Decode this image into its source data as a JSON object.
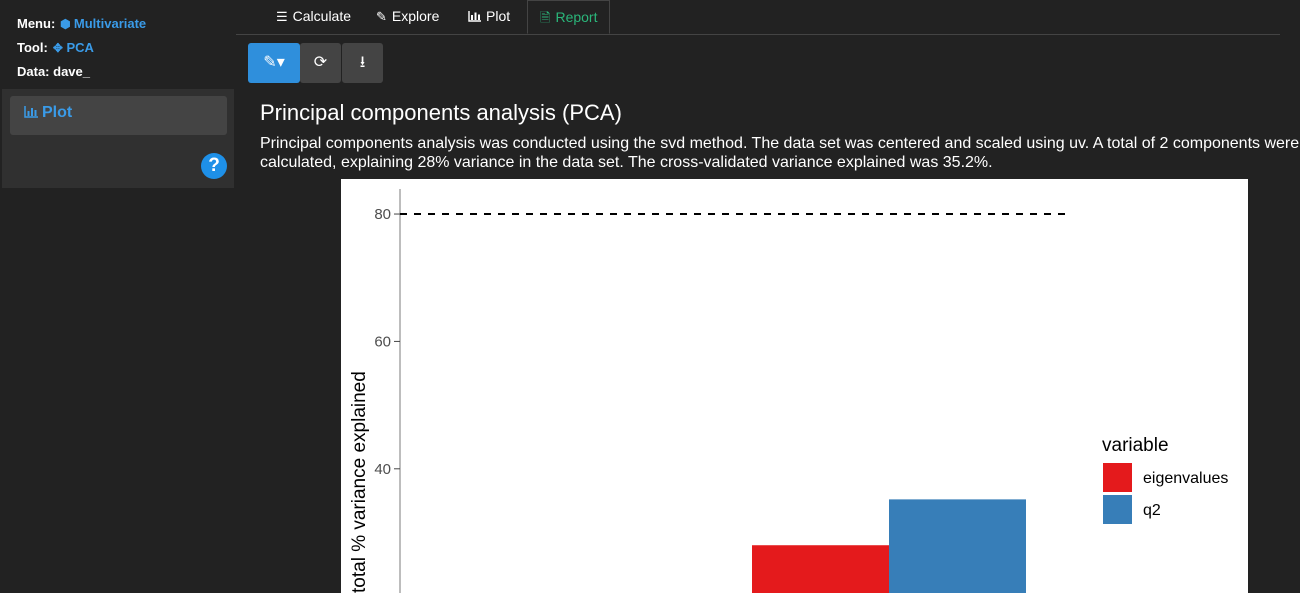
{
  "sidebar": {
    "menu_label": "Menu:",
    "menu_value": "Multivariate",
    "tool_label": "Tool:",
    "tool_value": "PCA",
    "data_label": "Data:",
    "data_value": "dave_",
    "nav_item": "Plot",
    "accent_color": "#3a9be8"
  },
  "tabs": [
    {
      "label": "Calculate",
      "icon": "sliders-icon"
    },
    {
      "label": "Explore",
      "icon": "edit-icon"
    },
    {
      "label": "Plot",
      "icon": "bar-chart-icon"
    },
    {
      "label": "Report",
      "icon": "document-icon"
    }
  ],
  "active_tab": "Report",
  "toolbar": [
    {
      "icon": "pencil-dropdown-icon"
    },
    {
      "icon": "refresh-icon"
    },
    {
      "icon": "download-icon"
    }
  ],
  "report": {
    "title": "Principal components analysis (PCA)",
    "text": "Principal components analysis was conducted using the svd method. The data set was centered and scaled using uv. A total of 2 components were calculated, explaining 28% variance in the data set. The cross-validated variance explained was 35.2%."
  },
  "chart_data": {
    "type": "bar",
    "ylabel": "total % variance explained",
    "yticks": [
      40,
      60,
      80
    ],
    "ylim_visible": [
      20.5,
      85.5
    ],
    "reference_line": 80,
    "legend_title": "variable",
    "legend_position": "right",
    "series": [
      {
        "name": "eigenvalues",
        "value": 28,
        "color": "#e41a1c"
      },
      {
        "name": "q2",
        "value": 35.2,
        "color": "#377eb8"
      }
    ]
  }
}
